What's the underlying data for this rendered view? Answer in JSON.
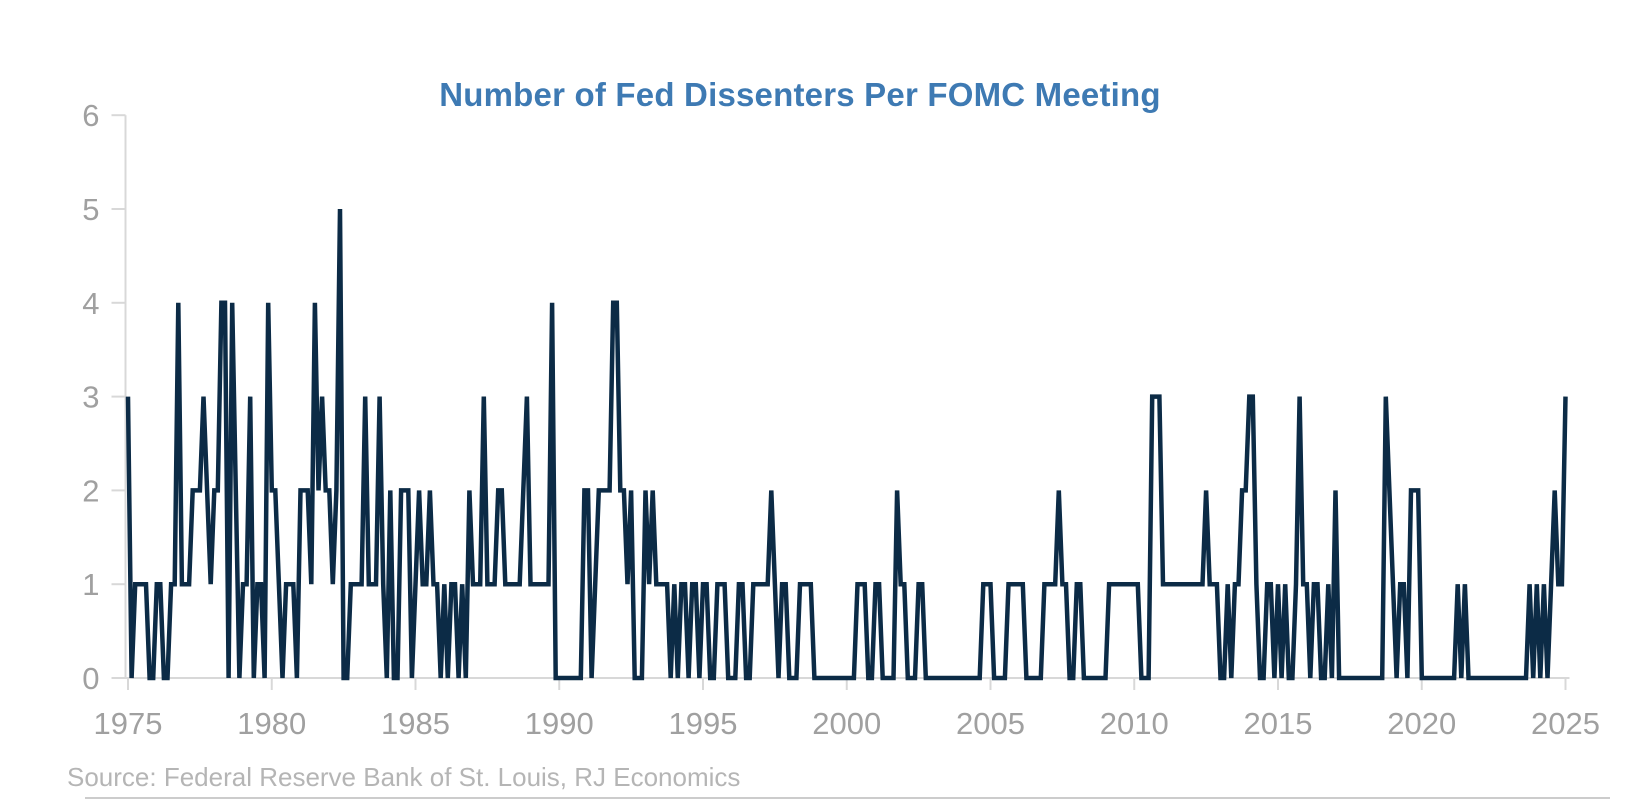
{
  "header": {
    "title": "Number of Fed Dissenters Per FOMC Meeting"
  },
  "footer": {
    "source": "Source: Federal Reserve Bank of St. Louis, RJ Economics"
  },
  "colors": {
    "line": "#0c2b46",
    "title": "#3e7ab3",
    "axis": "#d8d8d8",
    "tick_labels": "#a0a0a0",
    "source_text": "#b5b5b5",
    "bottom_rule": "#cccccc"
  },
  "chart_data": {
    "type": "line",
    "title": "Number of Fed Dissenters Per FOMC Meeting",
    "xlabel": "",
    "ylabel": "",
    "legend": "none",
    "grid": "off",
    "ylim": [
      0,
      6
    ],
    "xlim": [
      1975,
      2025
    ],
    "y_tick_labels": [
      "6",
      "5",
      "4",
      "3",
      "2",
      "1",
      "0"
    ],
    "y_tick_values": [
      6,
      5,
      4,
      3,
      2,
      1,
      0
    ],
    "x_tick_labels": [
      "1975",
      "1980",
      "1985",
      "1990",
      "1995",
      "2000",
      "2005",
      "2010",
      "2015",
      "2020",
      "2025"
    ],
    "x_tick_values": [
      1975,
      1980,
      1985,
      1990,
      1995,
      2000,
      2005,
      2010,
      2015,
      2020,
      2025
    ],
    "series_name": "Fed dissenters per FOMC meeting",
    "meetings_per_year": 8,
    "values_by_year": [
      {
        "year": 1975,
        "meetings": [
          3,
          0,
          1,
          1,
          1,
          1,
          0,
          0
        ]
      },
      {
        "year": 1976,
        "meetings": [
          1,
          1,
          0,
          0,
          1,
          1,
          4,
          1
        ]
      },
      {
        "year": 1977,
        "meetings": [
          1,
          1,
          2,
          2,
          2,
          3,
          2,
          1
        ]
      },
      {
        "year": 1978,
        "meetings": [
          2,
          2,
          4,
          4,
          0,
          4,
          2,
          0
        ]
      },
      {
        "year": 1979,
        "meetings": [
          1,
          1,
          3,
          0,
          1,
          1,
          0,
          4
        ]
      },
      {
        "year": 1980,
        "meetings": [
          2,
          2,
          1,
          0,
          1,
          1,
          1,
          0
        ]
      },
      {
        "year": 1981,
        "meetings": [
          2,
          2,
          2,
          1,
          4,
          2,
          3,
          2
        ]
      },
      {
        "year": 1982,
        "meetings": [
          2,
          1,
          2,
          5,
          0,
          0,
          1,
          1
        ]
      },
      {
        "year": 1983,
        "meetings": [
          1,
          1,
          3,
          1,
          1,
          1,
          3,
          1
        ]
      },
      {
        "year": 1984,
        "meetings": [
          0,
          2,
          0,
          0,
          2,
          2,
          2,
          0
        ]
      },
      {
        "year": 1985,
        "meetings": [
          1,
          2,
          1,
          1,
          2,
          1,
          1,
          0
        ]
      },
      {
        "year": 1986,
        "meetings": [
          1,
          0,
          1,
          1,
          0,
          1,
          0,
          2
        ]
      },
      {
        "year": 1987,
        "meetings": [
          1,
          1,
          1,
          3,
          1,
          1,
          1,
          2
        ]
      },
      {
        "year": 1988,
        "meetings": [
          2,
          1,
          1,
          1,
          1,
          1,
          2,
          3
        ]
      },
      {
        "year": 1989,
        "meetings": [
          1,
          1,
          1,
          1,
          1,
          1,
          4,
          0
        ]
      },
      {
        "year": 1990,
        "meetings": [
          0,
          0,
          0,
          0,
          0,
          0,
          0,
          2
        ]
      },
      {
        "year": 1991,
        "meetings": [
          2,
          0,
          1,
          2,
          2,
          2,
          2,
          4
        ]
      },
      {
        "year": 1992,
        "meetings": [
          4,
          2,
          2,
          1,
          2,
          0,
          0,
          0
        ]
      },
      {
        "year": 1993,
        "meetings": [
          2,
          1,
          2,
          1,
          1,
          1,
          1,
          0
        ]
      },
      {
        "year": 1994,
        "meetings": [
          1,
          0,
          1,
          1,
          0,
          1,
          1,
          0
        ]
      },
      {
        "year": 1995,
        "meetings": [
          1,
          1,
          0,
          0,
          1,
          1,
          1,
          0
        ]
      },
      {
        "year": 1996,
        "meetings": [
          0,
          0,
          1,
          1,
          0,
          0,
          1,
          1
        ]
      },
      {
        "year": 1997,
        "meetings": [
          1,
          1,
          1,
          2,
          1,
          0,
          1,
          1
        ]
      },
      {
        "year": 1998,
        "meetings": [
          0,
          0,
          0,
          1,
          1,
          1,
          1,
          0
        ]
      },
      {
        "year": 1999,
        "meetings": [
          0,
          0,
          0,
          0,
          0,
          0,
          0,
          0
        ]
      },
      {
        "year": 2000,
        "meetings": [
          0,
          0,
          0,
          1,
          1,
          1,
          0,
          0
        ]
      },
      {
        "year": 2001,
        "meetings": [
          1,
          1,
          0,
          0,
          0,
          0,
          2,
          1
        ]
      },
      {
        "year": 2002,
        "meetings": [
          1,
          0,
          0,
          0,
          1,
          1,
          0,
          0
        ]
      },
      {
        "year": 2003,
        "meetings": [
          0,
          0,
          0,
          0,
          0,
          0,
          0,
          0
        ]
      },
      {
        "year": 2004,
        "meetings": [
          0,
          0,
          0,
          0,
          0,
          0,
          1,
          1
        ]
      },
      {
        "year": 2005,
        "meetings": [
          1,
          0,
          0,
          0,
          0,
          1,
          1,
          1
        ]
      },
      {
        "year": 2006,
        "meetings": [
          1,
          1,
          0,
          0,
          0,
          0,
          0,
          1
        ]
      },
      {
        "year": 2007,
        "meetings": [
          1,
          1,
          1,
          2,
          1,
          1,
          0,
          0
        ]
      },
      {
        "year": 2008,
        "meetings": [
          1,
          1,
          0,
          0,
          0,
          0,
          0,
          0
        ]
      },
      {
        "year": 2009,
        "meetings": [
          0,
          1,
          1,
          1,
          1,
          1,
          1,
          1
        ]
      },
      {
        "year": 2010,
        "meetings": [
          1,
          1,
          0,
          0,
          0,
          3,
          3,
          3
        ]
      },
      {
        "year": 2011,
        "meetings": [
          1,
          1,
          1,
          1,
          1,
          1,
          1,
          1
        ]
      },
      {
        "year": 2012,
        "meetings": [
          1,
          1,
          1,
          1,
          2,
          1,
          1,
          1
        ]
      },
      {
        "year": 2013,
        "meetings": [
          0,
          0,
          1,
          0,
          1,
          1,
          2,
          2
        ]
      },
      {
        "year": 2014,
        "meetings": [
          3,
          3,
          1,
          0,
          0,
          1,
          1,
          0
        ]
      },
      {
        "year": 2015,
        "meetings": [
          1,
          0,
          1,
          0,
          0,
          1,
          3,
          1
        ]
      },
      {
        "year": 2016,
        "meetings": [
          1,
          0,
          1,
          1,
          0,
          0,
          1,
          0
        ]
      },
      {
        "year": 2017,
        "meetings": [
          2,
          0,
          0,
          0,
          0,
          0,
          0,
          0
        ]
      },
      {
        "year": 2018,
        "meetings": [
          0,
          0,
          0,
          0,
          0,
          0,
          3,
          2
        ]
      },
      {
        "year": 2019,
        "meetings": [
          1,
          0,
          1,
          1,
          0,
          2,
          2,
          2
        ]
      },
      {
        "year": 2020,
        "meetings": [
          0,
          0,
          0,
          0,
          0,
          0,
          0,
          0
        ]
      },
      {
        "year": 2021,
        "meetings": [
          0,
          0,
          1,
          0,
          1,
          0,
          0,
          0
        ]
      },
      {
        "year": 2022,
        "meetings": [
          0,
          0,
          0,
          0,
          0,
          0,
          0,
          0
        ]
      },
      {
        "year": 2023,
        "meetings": [
          0,
          0,
          0,
          0,
          0,
          0,
          1,
          0
        ]
      },
      {
        "year": 2024,
        "meetings": [
          1,
          0,
          1,
          0,
          1,
          2,
          1,
          1
        ]
      },
      {
        "year": 2025,
        "meetings": [
          3
        ]
      }
    ]
  }
}
